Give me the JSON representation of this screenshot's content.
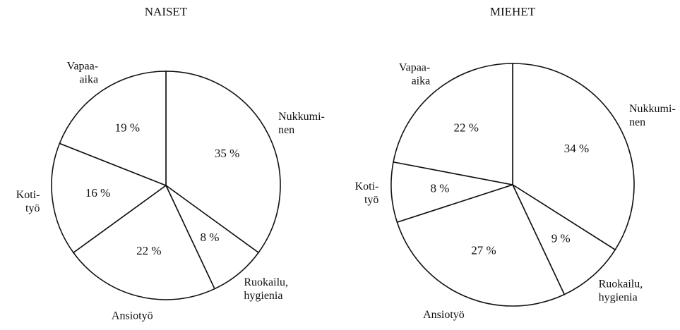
{
  "chart_data": [
    {
      "type": "pie",
      "title": "NAISET",
      "categories": [
        [
          "Nukkumi-",
          "nen"
        ],
        [
          "Ruokailu,",
          "hygienia"
        ],
        [
          "Ansiotyö"
        ],
        [
          "Koti-",
          "työ"
        ],
        [
          "Vapaa-",
          "aika"
        ]
      ],
      "values": [
        35,
        8,
        22,
        16,
        19
      ],
      "value_labels": [
        "35 %",
        "8 %",
        "22 %",
        "16 %",
        "19 %"
      ]
    },
    {
      "type": "pie",
      "title": "MIEHET",
      "categories": [
        [
          "Nukkumi-",
          "nen"
        ],
        [
          "Ruokailu,",
          "hygienia"
        ],
        [
          "Ansiotyö"
        ],
        [
          "Koti-",
          "työ"
        ],
        [
          "Vapaa-",
          "aika"
        ]
      ],
      "values": [
        34,
        9,
        27,
        8,
        22
      ],
      "value_labels": [
        "34 %",
        "9 %",
        "27 %",
        "8 %",
        "22 %"
      ]
    }
  ]
}
